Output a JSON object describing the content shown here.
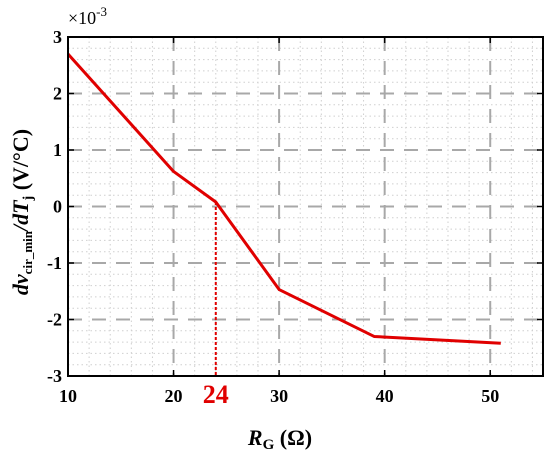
{
  "chart_data": {
    "type": "line",
    "title": "",
    "xlabel": {
      "main": "R",
      "sub": "G",
      "unit": " (Ω)"
    },
    "ylabel": {
      "prefix": "dv",
      "sub": "cir_min",
      "middle": "/dT",
      "sub2": "j",
      "unit": " (V/°C)"
    },
    "y_multiplier": {
      "base": "×10",
      "exp": "-3"
    },
    "xlim": [
      10,
      55
    ],
    "ylim": [
      -3,
      3
    ],
    "x_ticks": [
      10,
      20,
      30,
      40,
      50
    ],
    "y_ticks": [
      -3,
      -2,
      -1,
      0,
      1,
      2,
      3
    ],
    "x_tick_labels": [
      "10",
      "20",
      "30",
      "40",
      "50"
    ],
    "y_tick_labels": [
      "-3",
      "-2",
      "-1",
      "0",
      "1",
      "2",
      "3"
    ],
    "grid": true,
    "series": [
      {
        "color": "#e00000",
        "x": [
          10,
          20,
          24,
          30,
          39,
          51
        ],
        "y": [
          2.7,
          0.62,
          0.08,
          -1.47,
          -2.3,
          -2.42
        ]
      }
    ],
    "annotation": {
      "x": 24,
      "y": 0.08,
      "label": "24",
      "color": "#e00000"
    }
  }
}
